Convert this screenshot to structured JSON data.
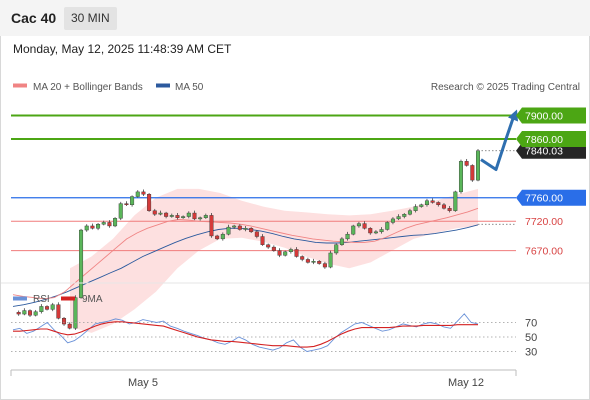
{
  "header": {
    "symbol": "Cac 40",
    "timeframe": "30 MIN"
  },
  "datetime": "Monday, May 12, 2025 11:48:39 AM CET",
  "colors": {
    "green_level": "#4ca614",
    "blue_level": "#2a6ee8",
    "red_level": "#f07c7c",
    "bollinger_band": "#fde0e0",
    "ma20": "#f08484",
    "ma50": "#2c5a9e",
    "candle_up": "#5ab65a",
    "candle_down": "#d43a3a",
    "rsi": "#6b92d8",
    "rsi_ma": "#d42222",
    "forecast_arrow": "#2f6fb0"
  },
  "chart_data": [
    {
      "type": "candlestick",
      "title": "",
      "legend": [
        {
          "label": "MA 20 + Bollinger Bands",
          "color": "#f08484"
        },
        {
          "label": "MA 50",
          "color": "#2c5a9e"
        }
      ],
      "watermark": "Research © 2025 Trading Central",
      "x_tick_labels": [
        "May 5",
        "May 12"
      ],
      "ylim": [
        7620,
        7940
      ],
      "levels": [
        {
          "label": "7900.00",
          "value": 7900,
          "style": "green",
          "tag": true
        },
        {
          "label": "7860.00",
          "value": 7860,
          "style": "green",
          "tag": true
        },
        {
          "label": "7840.03",
          "value": 7840.03,
          "style": "last-price",
          "tag": true
        },
        {
          "label": "7760.00",
          "value": 7760,
          "style": "blue",
          "tag": true
        },
        {
          "label": "7720.00",
          "value": 7720,
          "style": "red",
          "tag": false
        },
        {
          "label": "7670.00",
          "value": 7670,
          "style": "red",
          "tag": false
        }
      ],
      "price_path": [
        7565,
        7562,
        7568,
        7560,
        7566,
        7575,
        7570,
        7578,
        7555,
        7545,
        7538,
        7590,
        7705,
        7712,
        7708,
        7715,
        7718,
        7712,
        7725,
        7750,
        7748,
        7762,
        7770,
        7766,
        7738,
        7732,
        7734,
        7728,
        7730,
        7726,
        7728,
        7734,
        7724,
        7726,
        7730,
        7695,
        7690,
        7698,
        7710,
        7712,
        7706,
        7708,
        7702,
        7694,
        7680,
        7676,
        7670,
        7662,
        7668,
        7672,
        7660,
        7655,
        7650,
        7652,
        7648,
        7642,
        7666,
        7680,
        7690,
        7698,
        7712,
        7716,
        7708,
        7700,
        7702,
        7706,
        7718,
        7724,
        7728,
        7732,
        7738,
        7745,
        7748,
        7755,
        7752,
        7748,
        7742,
        7738,
        7770,
        7822,
        7815,
        7790,
        7840.03
      ],
      "ma20_path": [
        7595,
        7592,
        7590,
        7588,
        7590,
        7600,
        7615,
        7630,
        7645,
        7660,
        7675,
        7690,
        7700,
        7708,
        7714,
        7720,
        7723,
        7722,
        7720,
        7719,
        7718,
        7717,
        7715,
        7712,
        7708,
        7704,
        7700,
        7696,
        7693,
        7690,
        7688,
        7686,
        7685,
        7684,
        7684,
        7686,
        7692,
        7700,
        7708,
        7714,
        7718,
        7722,
        7726,
        7731,
        7736,
        7742
      ],
      "ma50_path": [
        7575,
        7578,
        7582,
        7587,
        7593,
        7600,
        7608,
        7616,
        7624,
        7632,
        7640,
        7650,
        7660,
        7668,
        7676,
        7684,
        7691,
        7697,
        7702,
        7706,
        7708,
        7708,
        7706,
        7703,
        7699,
        7694,
        7690,
        7687,
        7684,
        7683,
        7683,
        7684,
        7686,
        7688,
        7690,
        7692,
        7694,
        7696,
        7697,
        7699,
        7702,
        7705,
        7709,
        7714
      ],
      "bollinger_upper": [
        7640,
        7660,
        7690,
        7730,
        7760,
        7775,
        7775,
        7768,
        7755,
        7745,
        7738,
        7735,
        7732,
        7730,
        7732,
        7738,
        7745,
        7755,
        7765,
        7775
      ],
      "bollinger_lower": [
        7540,
        7530,
        7545,
        7570,
        7600,
        7640,
        7670,
        7690,
        7692,
        7685,
        7675,
        7660,
        7648,
        7640,
        7650,
        7670,
        7690,
        7700,
        7708,
        7712
      ],
      "forecast_path": [
        7825,
        7808,
        7860,
        7900
      ]
    },
    {
      "type": "line",
      "title": "",
      "legend": [
        {
          "label": "RSI",
          "color": "#6b92d8"
        },
        {
          "label": "9MA",
          "color": "#d42222"
        }
      ],
      "ylim": [
        10,
        90
      ],
      "y_tick_labels": [
        "70",
        "50",
        "30"
      ],
      "x_tick_labels": [
        "May 5",
        "May 12"
      ],
      "series": [
        {
          "name": "RSI",
          "values": [
            60,
            62,
            55,
            58,
            64,
            70,
            60,
            52,
            42,
            45,
            52,
            60,
            68,
            70,
            72,
            75,
            73,
            68,
            70,
            74,
            72,
            70,
            72,
            65,
            62,
            58,
            55,
            52,
            48,
            46,
            42,
            40,
            44,
            50,
            46,
            40,
            36,
            34,
            32,
            35,
            42,
            46,
            36,
            30,
            32,
            34,
            38,
            48,
            56,
            62,
            68,
            70,
            66,
            62,
            58,
            60,
            64,
            68,
            66,
            64,
            68,
            70,
            68,
            64,
            62,
            72,
            82,
            70,
            68
          ]
        },
        {
          "name": "9MA",
          "values": [
            58,
            58,
            59,
            60,
            61,
            61,
            58,
            55,
            53,
            54,
            57,
            61,
            65,
            68,
            70,
            71,
            71,
            70,
            69,
            68,
            67,
            66,
            65,
            62,
            59,
            56,
            53,
            50,
            48,
            46,
            45,
            44,
            44,
            43,
            42,
            41,
            40,
            39,
            38,
            38,
            38,
            37,
            36,
            36,
            37,
            40,
            44,
            49,
            54,
            58,
            61,
            63,
            63,
            63,
            63,
            63,
            64,
            65,
            65,
            65,
            66,
            66,
            66,
            66,
            66,
            67,
            67,
            67,
            67
          ]
        }
      ]
    }
  ]
}
